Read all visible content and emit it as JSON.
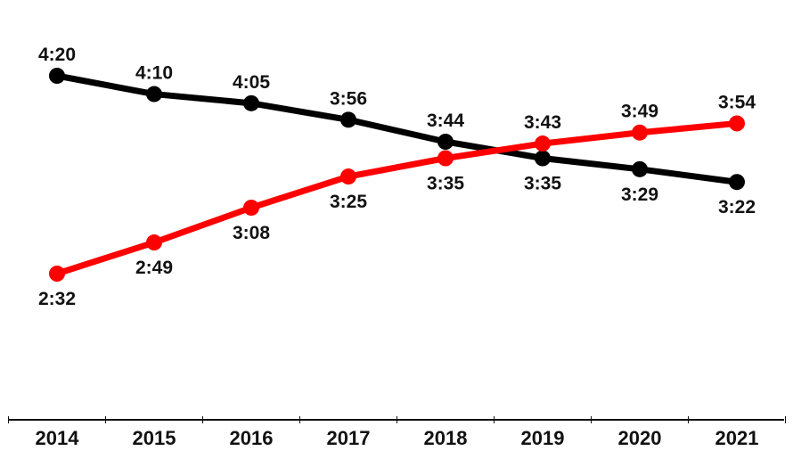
{
  "chart_data": {
    "type": "line",
    "title": "",
    "xlabel": "",
    "ylabel": "",
    "categories": [
      "2014",
      "2015",
      "2016",
      "2017",
      "2018",
      "2019",
      "2020",
      "2021"
    ],
    "series": [
      {
        "name": "black",
        "color": "#000000",
        "values": [
          260,
          250,
          245,
          236,
          224,
          215,
          209,
          202
        ],
        "labels": [
          "4:20",
          "4:10",
          "4:05",
          "3:56",
          "3:44",
          "3:35",
          "3:29",
          "3:22"
        ],
        "label_pos": [
          "above",
          "above",
          "above",
          "above",
          "above",
          "below",
          "below",
          "below"
        ]
      },
      {
        "name": "red",
        "color": "#ff0000",
        "values": [
          152,
          169,
          188,
          205,
          215,
          223,
          229,
          234
        ],
        "labels": [
          "2:32",
          "2:49",
          "3:08",
          "3:25",
          "3:35",
          "3:43",
          "3:49",
          "3:54"
        ],
        "label_pos": [
          "below",
          "below",
          "below",
          "below",
          "below",
          "above",
          "above",
          "above"
        ]
      }
    ],
    "value_unit": "minutes",
    "ylim": [
      152,
      260
    ],
    "grid": false,
    "legend": "none"
  }
}
